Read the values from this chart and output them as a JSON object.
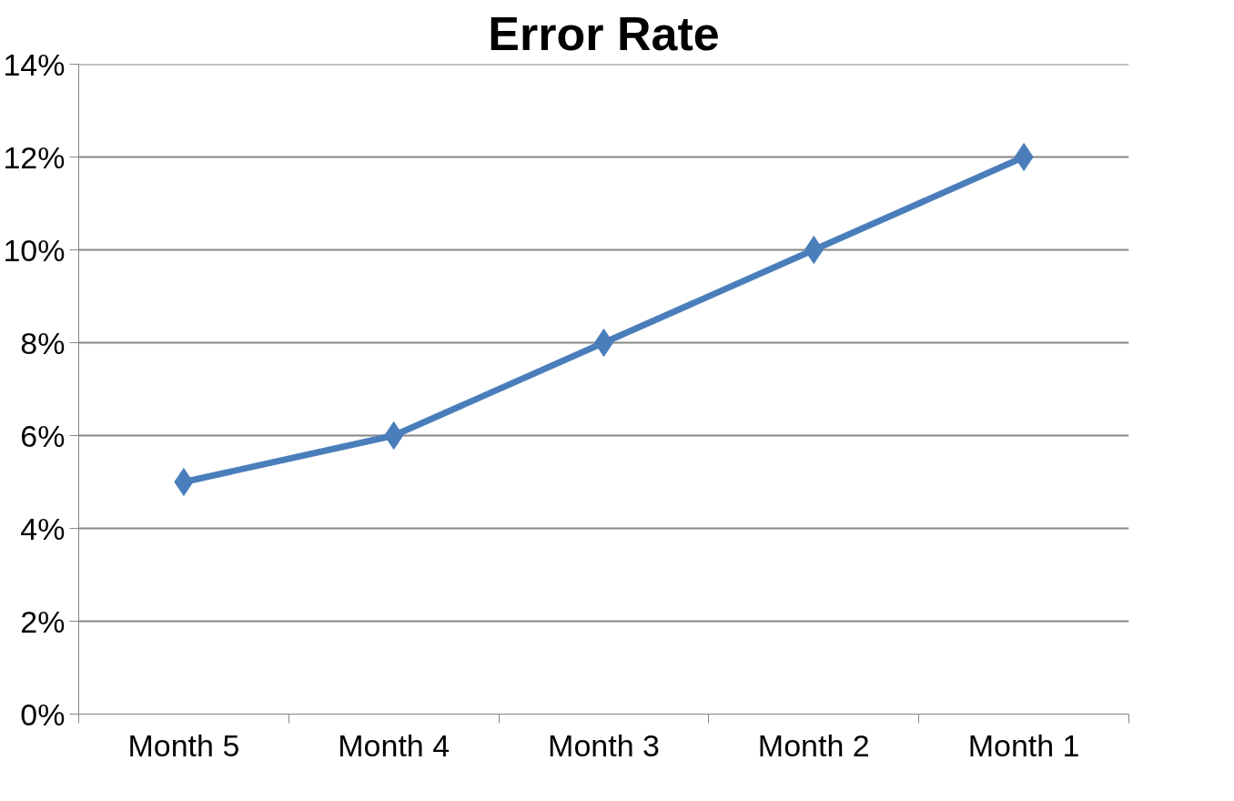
{
  "chart_data": {
    "type": "line",
    "title": "Error Rate",
    "categories": [
      "Month 5",
      "Month 4",
      "Month 3",
      "Month 2",
      "Month 1"
    ],
    "series": [
      {
        "color": "#4a7ebb",
        "values": [
          5,
          6,
          8,
          10,
          12
        ]
      }
    ],
    "ylim": [
      0,
      14
    ],
    "yticks": [
      {
        "value": 0,
        "label": "0%"
      },
      {
        "value": 2,
        "label": "2%"
      },
      {
        "value": 4,
        "label": "4%"
      },
      {
        "value": 6,
        "label": "6%"
      },
      {
        "value": 8,
        "label": "8%"
      },
      {
        "value": 10,
        "label": "10%"
      },
      {
        "value": 12,
        "label": "12%"
      },
      {
        "value": 14,
        "label": "14%"
      }
    ],
    "grid": "y",
    "marker": "diamond",
    "line_style": "solid"
  }
}
